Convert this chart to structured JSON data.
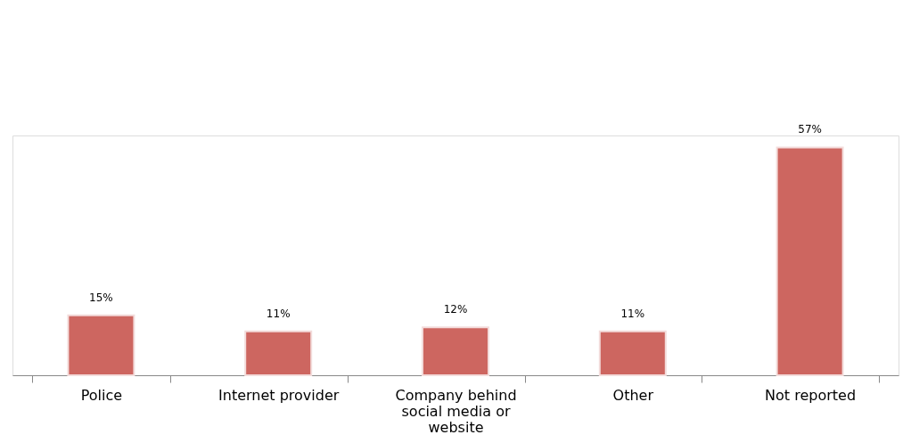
{
  "chart_data": {
    "type": "bar",
    "categories": [
      "Police",
      "Internet provider",
      "Company behind social media or website",
      "Other",
      "Not reported"
    ],
    "values": [
      15,
      11,
      12,
      11,
      57
    ],
    "value_labels": [
      "15%",
      "11%",
      "12%",
      "11%",
      "57%"
    ],
    "color": "#cd6660",
    "grid": false
  }
}
